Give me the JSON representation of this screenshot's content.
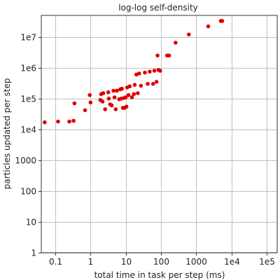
{
  "chart_data": {
    "type": "scatter",
    "title": "log-log self-density",
    "xlabel": "total time in task per step (ms)",
    "ylabel": "particles updated per step",
    "xscale": "log",
    "yscale": "log",
    "xlim": [
      0.04,
      200000
    ],
    "ylim": [
      1,
      50000000
    ],
    "grid": true,
    "xticks": [
      {
        "value": 0.1,
        "label": "0.1"
      },
      {
        "value": 1,
        "label": "1"
      },
      {
        "value": 10,
        "label": "10"
      },
      {
        "value": 100,
        "label": "100"
      },
      {
        "value": 1000,
        "label": "1000"
      },
      {
        "value": 10000,
        "label": "1e4"
      },
      {
        "value": 100000,
        "label": "1e5"
      }
    ],
    "yticks": [
      {
        "value": 1,
        "label": "1"
      },
      {
        "value": 10,
        "label": "10"
      },
      {
        "value": 100,
        "label": "100"
      },
      {
        "value": 1000,
        "label": "1000"
      },
      {
        "value": 10000,
        "label": "1e4"
      },
      {
        "value": 100000,
        "label": "1e5"
      },
      {
        "value": 1000000,
        "label": "1e6"
      },
      {
        "value": 10000000,
        "label": "1e7"
      }
    ],
    "marker_color": "#dd0000",
    "points": [
      [
        0.05,
        17000
      ],
      [
        0.12,
        18000
      ],
      [
        0.25,
        18000
      ],
      [
        0.33,
        19000
      ],
      [
        0.35,
        70000
      ],
      [
        0.7,
        42000
      ],
      [
        0.95,
        130000
      ],
      [
        1.0,
        75000
      ],
      [
        1.9,
        90000
      ],
      [
        2.0,
        140000
      ],
      [
        2.3,
        150000
      ],
      [
        2.2,
        80000
      ],
      [
        2.6,
        45000
      ],
      [
        3.2,
        160000
      ],
      [
        3.3,
        100000
      ],
      [
        3.6,
        65000
      ],
      [
        4.0,
        60000
      ],
      [
        4.5,
        180000
      ],
      [
        4.8,
        110000
      ],
      [
        5.2,
        45000
      ],
      [
        5.6,
        180000
      ],
      [
        6.5,
        95000
      ],
      [
        7.0,
        200000
      ],
      [
        7.5,
        100000
      ],
      [
        7.8,
        210000
      ],
      [
        8.3,
        50000
      ],
      [
        9.0,
        105000
      ],
      [
        9.3,
        50000
      ],
      [
        10,
        110000
      ],
      [
        10.5,
        55000
      ],
      [
        11,
        230000
      ],
      [
        12,
        130000
      ],
      [
        13,
        250000
      ],
      [
        15,
        110000
      ],
      [
        17,
        140000
      ],
      [
        18,
        280000
      ],
      [
        20,
        600000
      ],
      [
        22,
        150000
      ],
      [
        24,
        650000
      ],
      [
        27,
        260000
      ],
      [
        35,
        700000
      ],
      [
        42,
        300000
      ],
      [
        48,
        750000
      ],
      [
        60,
        300000
      ],
      [
        65,
        800000
      ],
      [
        75,
        350000
      ],
      [
        80,
        2500000
      ],
      [
        85,
        850000
      ],
      [
        95,
        800000
      ],
      [
        150,
        2500000
      ],
      [
        170,
        2500000
      ],
      [
        260,
        6500000
      ],
      [
        620,
        12000000
      ],
      [
        2200,
        22000000
      ],
      [
        5000,
        33000000
      ],
      [
        5500,
        33000000
      ]
    ]
  }
}
